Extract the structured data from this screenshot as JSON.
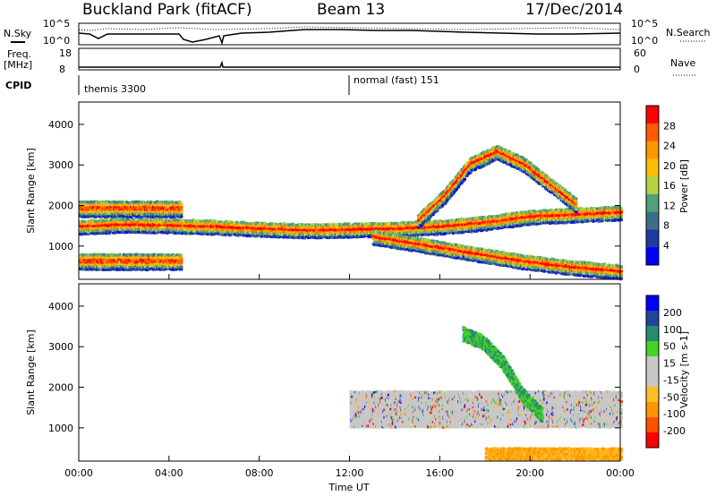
{
  "header": {
    "station": "Buckland Park (fitACF)",
    "beam": "Beam 13",
    "date": "17/Dec/2014"
  },
  "noise_panel": {
    "left_label": "N.Sky",
    "right_label": "N.Search",
    "left_ticks": [
      "10^5",
      "10^0"
    ],
    "right_ticks": [
      "10^5",
      "10^0"
    ]
  },
  "freq_panel": {
    "left_label_1": "Freq.",
    "left_label_2": "[MHz]",
    "right_label": "Nave",
    "left_ticks": [
      "18",
      "8"
    ],
    "right_ticks": [
      "60",
      "0"
    ]
  },
  "cpid": {
    "label": "CPID",
    "modes": [
      "themis 3300",
      "normal (fast) 151"
    ]
  },
  "time_axis": {
    "label": "Time UT",
    "ticks": [
      "00:00",
      "04:00",
      "08:00",
      "12:00",
      "16:00",
      "20:00",
      "00:00"
    ]
  },
  "colors": {
    "power_scale": [
      "#0000ff",
      "#1e3ca0",
      "#3c6e8c",
      "#50a078",
      "#b4d246",
      "#ffbe00",
      "#ff9600",
      "#ff5a00",
      "#ff0000"
    ],
    "velocity_scale": [
      "#ff0000",
      "#ff5000",
      "#ff9600",
      "#ffbe28",
      "#c8c8c8",
      "#c8c8c8",
      "#46d228",
      "#288c6e",
      "#1e46a0",
      "#0000ff"
    ]
  },
  "chart_data": [
    {
      "type": "heatmap",
      "panel": "power",
      "ylabel": "Slant Range [km]",
      "xlabel": "Time UT",
      "x_ticks": [
        "00:00",
        "04:00",
        "08:00",
        "12:00",
        "16:00",
        "20:00",
        "00:00"
      ],
      "ylim": [
        180,
        4550
      ],
      "y_ticks": [
        1000,
        2000,
        3000,
        4000
      ],
      "colorbar_label": "Power [dB]",
      "colorbar_ticks": [
        4,
        8,
        12,
        16,
        20,
        24,
        28
      ],
      "features": [
        {
          "name": "main_band",
          "t0": 0.0,
          "t1": 24.0,
          "range_km_mid": [
            1450,
            1500,
            1480,
            1450,
            1400,
            1360,
            1380,
            1400,
            1450,
            1550,
            1700,
            1750,
            1800
          ]
        },
        {
          "name": "upper_band_morning",
          "t0": 0.0,
          "t1": 4.5,
          "range_km": [
            1700,
            2100
          ]
        },
        {
          "name": "lower_band_night",
          "t0": 0.0,
          "t1": 4.5,
          "range_km": [
            400,
            800
          ]
        },
        {
          "name": "rising_arc",
          "t0": 15.0,
          "t1": 22.0,
          "range_km_mid": [
            1600,
            2200,
            3000,
            3300,
            3000,
            2500,
            2000
          ]
        },
        {
          "name": "lower_descending",
          "t0": 13.0,
          "t1": 24.0,
          "range_km_mid": [
            1200,
            1000,
            800,
            600,
            450,
            350
          ]
        }
      ]
    },
    {
      "type": "heatmap",
      "panel": "velocity",
      "ylabel": "Slant Range [km]",
      "xlabel": "Time UT",
      "x_ticks": [
        "00:00",
        "04:00",
        "08:00",
        "12:00",
        "16:00",
        "20:00",
        "00:00"
      ],
      "ylim": [
        180,
        4550
      ],
      "y_ticks": [
        1000,
        2000,
        3000,
        4000
      ],
      "colorbar_label": "Velocity [m s-1]",
      "colorbar_ticks": [
        200,
        100,
        50,
        15,
        -15,
        -50,
        -100,
        -200
      ],
      "features": [
        {
          "name": "ground_scatter",
          "t0": 12.0,
          "t1": 24.0,
          "range_km": [
            1000,
            1900
          ],
          "velocity": 0
        },
        {
          "name": "positive_arc",
          "t0": 17.0,
          "t1": 20.5,
          "range_km_mid": [
            3300,
            3100,
            2600,
            1800,
            1300
          ],
          "velocity": 80
        },
        {
          "name": "negative_low",
          "t0": 18.0,
          "t1": 24.0,
          "range_km": [
            200,
            500
          ],
          "velocity": -60
        }
      ]
    }
  ]
}
